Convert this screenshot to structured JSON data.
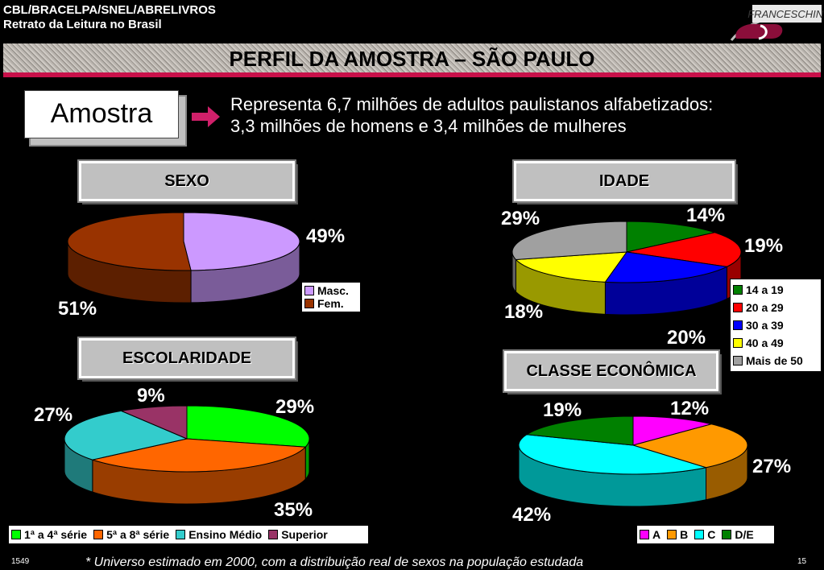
{
  "header": {
    "line1": "CBL/BRACELPA/SNEL/ABRELIVROS",
    "line2": "Retrato da Leitura no Brasil",
    "logo_text": "FRANCESCHINI"
  },
  "banner": {
    "title": "PERFIL DA AMOSTRA – SÃO PAULO",
    "accent": "#c8104a"
  },
  "amostra": {
    "label": "Amostra",
    "line1": "Representa 6,7 milhões de adultos paulistanos alfabetizados:",
    "line2": "3,3 milhões de homens e 3,4 milhões de mulheres"
  },
  "footer": {
    "left": "1549",
    "right": "15",
    "note": "* Universo estimado em 2000, com a distribuição real de sexos na população estudada"
  },
  "chart_data": [
    {
      "type": "pie",
      "title": "SEXO",
      "categories": [
        "Masc.",
        "Fem."
      ],
      "values": [
        49,
        51
      ],
      "labels": [
        "49%",
        "51%"
      ],
      "colors": [
        "#cc99ff",
        "#993300"
      ],
      "legend": "right"
    },
    {
      "type": "pie",
      "title": "IDADE",
      "categories": [
        "14 a 19",
        "20 a 29",
        "30 a 39",
        "40 a 49",
        "Mais de 50"
      ],
      "values": [
        14,
        19,
        20,
        18,
        29
      ],
      "labels": [
        "14%",
        "19%",
        "20%",
        "18%",
        "29%"
      ],
      "colors": [
        "#008000",
        "#ff0000",
        "#0000ff",
        "#ffff00",
        "#a0a0a0"
      ],
      "legend": "right"
    },
    {
      "type": "pie",
      "title": "ESCOLARIDADE",
      "categories": [
        "1ª a 4ª série",
        "5ª a 8ª série",
        "Ensino Médio",
        "Superior"
      ],
      "values": [
        29,
        35,
        27,
        9
      ],
      "labels": [
        "29%",
        "35%",
        "27%",
        "9%"
      ],
      "colors": [
        "#00ff00",
        "#ff6600",
        "#33cccc",
        "#993366"
      ],
      "legend": "bottom"
    },
    {
      "type": "pie",
      "title": "CLASSE ECONÔMICA",
      "categories": [
        "A",
        "B",
        "C",
        "D/E"
      ],
      "values": [
        12,
        27,
        42,
        19
      ],
      "labels": [
        "12%",
        "27%",
        "42%",
        "19%"
      ],
      "colors": [
        "#ff00ff",
        "#ff9900",
        "#00ffff",
        "#008000"
      ],
      "legend": "bottom"
    }
  ]
}
